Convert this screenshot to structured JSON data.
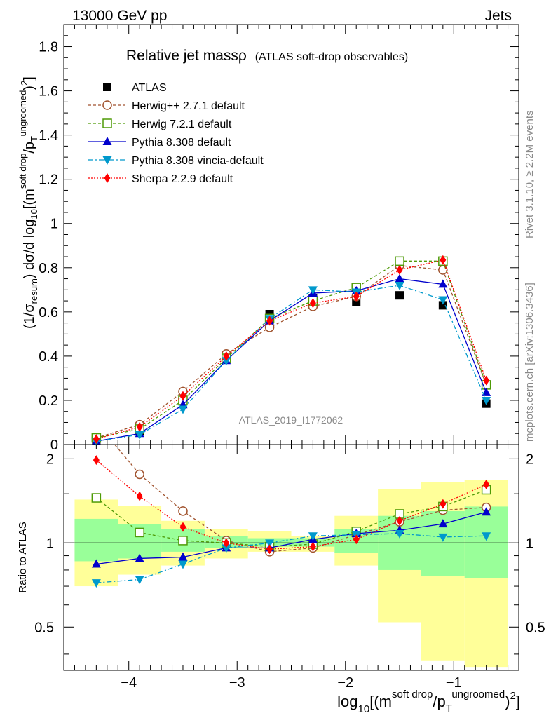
{
  "header": {
    "left": "13000 GeV pp",
    "right": "Jets"
  },
  "side_labels": {
    "rivet": "Rivet 3.1.10, ≥ 2.2M events",
    "mcplots": "mcplots.cern.ch [arXiv:1306.3436]"
  },
  "watermark": "ATLAS_2019_I1772062",
  "chart_data": [
    {
      "type": "line",
      "panel": "main",
      "title_main": "Relative jet massρ",
      "title_sub": "(ATLAS soft-drop observables)",
      "ylabel": "(1/σresum) dσ/d log10[(m soft drop/pT ungroomed)2]",
      "xlim": [
        -4.6,
        -0.4
      ],
      "ylim": [
        0,
        1.9
      ],
      "yticks": [
        0,
        0.2,
        0.4,
        0.6,
        0.8,
        1,
        1.2,
        1.4,
        1.6,
        1.8
      ],
      "ytick_labels": [
        "0",
        "0.2",
        "0.4",
        "0.6",
        "0.8",
        "1",
        "1.2",
        "1.4",
        "1.6",
        "1.8"
      ],
      "x": [
        -4.3,
        -3.9,
        -3.5,
        -3.1,
        -2.7,
        -2.3,
        -1.9,
        -1.5,
        -1.1,
        -0.7
      ],
      "series": [
        {
          "name": "ATLAS",
          "color": "#000000",
          "marker": "square-filled",
          "dash": "none",
          "values": [
            0.02,
            0.06,
            0.2,
            0.39,
            0.59,
            0.66,
            0.645,
            0.675,
            0.63,
            0.185
          ]
        },
        {
          "name": "Herwig++ 2.7.1 default",
          "color": "#a0522d",
          "marker": "circle-open",
          "dash": "4,3",
          "values": [
            0.03,
            0.09,
            0.24,
            0.41,
            0.53,
            0.625,
            0.67,
            0.81,
            0.79,
            0.27
          ]
        },
        {
          "name": "Herwig 7.2.1 default",
          "color": "#4e9a06",
          "marker": "square-open",
          "dash": "4,3",
          "values": [
            0.03,
            0.07,
            0.2,
            0.39,
            0.57,
            0.65,
            0.71,
            0.83,
            0.83,
            0.27
          ]
        },
        {
          "name": "Pythia 8.308 default",
          "color": "#0000cc",
          "marker": "triangle-up",
          "dash": "none",
          "values": [
            0.015,
            0.05,
            0.18,
            0.38,
            0.56,
            0.685,
            0.695,
            0.75,
            0.725,
            0.235
          ]
        },
        {
          "name": "Pythia 8.308 vincia-default",
          "color": "#0099cc",
          "marker": "triangle-down",
          "dash": "7,3,2,3",
          "values": [
            0.015,
            0.045,
            0.16,
            0.38,
            0.57,
            0.7,
            0.69,
            0.72,
            0.655,
            0.2
          ]
        },
        {
          "name": "Sherpa 2.2.9 default",
          "color": "#ff0000",
          "marker": "diamond",
          "dash": "2,2",
          "values": [
            0.025,
            0.08,
            0.22,
            0.4,
            0.56,
            0.64,
            0.67,
            0.79,
            0.835,
            0.29
          ]
        }
      ]
    },
    {
      "type": "line",
      "panel": "ratio",
      "ylabel": "Ratio to ATLAS",
      "xlabel": "log10[(m soft drop/pT ungroomed)2]",
      "xlim": [
        -4.6,
        -0.4
      ],
      "ylim": [
        0.35,
        2.25
      ],
      "yticks_labeled": [
        0.5,
        1,
        2
      ],
      "ytick_labels": [
        "0.5",
        "1",
        "2"
      ],
      "xticks_labeled": [
        -4,
        -3,
        -2,
        -1
      ],
      "xtick_labels": [
        "−4",
        "−3",
        "−2",
        "−1"
      ],
      "reference_line": 1,
      "bands": [
        {
          "x0": -4.5,
          "x1": -4.1,
          "green": [
            0.86,
            1.22
          ],
          "yellow": [
            0.7,
            1.43
          ]
        },
        {
          "x0": -4.1,
          "x1": -3.7,
          "green": [
            0.88,
            1.17
          ],
          "yellow": [
            0.77,
            1.36
          ]
        },
        {
          "x0": -3.7,
          "x1": -3.3,
          "green": [
            0.93,
            1.12
          ],
          "yellow": [
            0.83,
            1.2
          ]
        },
        {
          "x0": -3.3,
          "x1": -2.9,
          "green": [
            0.96,
            1.06
          ],
          "yellow": [
            0.88,
            1.12
          ]
        },
        {
          "x0": -2.9,
          "x1": -2.5,
          "green": [
            0.97,
            1.04
          ],
          "yellow": [
            0.93,
            1.1
          ]
        },
        {
          "x0": -2.5,
          "x1": -2.1,
          "green": [
            0.97,
            1.04
          ],
          "yellow": [
            0.93,
            1.06
          ]
        },
        {
          "x0": -2.1,
          "x1": -1.7,
          "green": [
            0.92,
            1.12
          ],
          "yellow": [
            0.83,
            1.25
          ]
        },
        {
          "x0": -1.7,
          "x1": -1.3,
          "green": [
            0.8,
            1.25
          ],
          "yellow": [
            0.52,
            1.56
          ]
        },
        {
          "x0": -1.3,
          "x1": -0.9,
          "green": [
            0.76,
            1.3
          ],
          "yellow": [
            0.38,
            1.65
          ]
        },
        {
          "x0": -0.9,
          "x1": -0.5,
          "green": [
            0.75,
            1.35
          ],
          "yellow": [
            0.36,
            1.68
          ]
        }
      ],
      "x": [
        -4.3,
        -3.9,
        -3.5,
        -3.1,
        -2.7,
        -2.3,
        -1.9,
        -1.5,
        -1.1,
        -0.7
      ],
      "series": [
        {
          "name": "Herwig++ 2.7.1 default",
          "color": "#a0522d",
          "marker": "circle-open",
          "dash": "4,3",
          "values": [
            2.7,
            1.76,
            1.3,
            1.02,
            0.93,
            0.96,
            1.07,
            1.19,
            1.31,
            1.34
          ]
        },
        {
          "name": "Herwig 7.2.1 default",
          "color": "#4e9a06",
          "marker": "square-open",
          "dash": "4,3",
          "values": [
            1.45,
            1.09,
            1.02,
            1.0,
            0.97,
            0.99,
            1.1,
            1.27,
            1.35,
            1.55
          ]
        },
        {
          "name": "Pythia 8.308 default",
          "color": "#0000cc",
          "marker": "triangle-up",
          "dash": "none",
          "values": [
            0.84,
            0.88,
            0.89,
            0.96,
            0.96,
            1.03,
            1.08,
            1.11,
            1.17,
            1.29
          ]
        },
        {
          "name": "Pythia 8.308 vincia-default",
          "color": "#0099cc",
          "marker": "triangle-down",
          "dash": "7,3,2,3",
          "values": [
            0.72,
            0.74,
            0.84,
            0.96,
            1.0,
            1.06,
            1.07,
            1.08,
            1.05,
            1.06
          ]
        },
        {
          "name": "Sherpa 2.2.9 default",
          "color": "#ff0000",
          "marker": "diamond",
          "dash": "2,2",
          "values": [
            1.98,
            1.47,
            1.14,
            1.0,
            0.95,
            0.97,
            1.03,
            1.2,
            1.38,
            1.62
          ]
        }
      ]
    }
  ]
}
